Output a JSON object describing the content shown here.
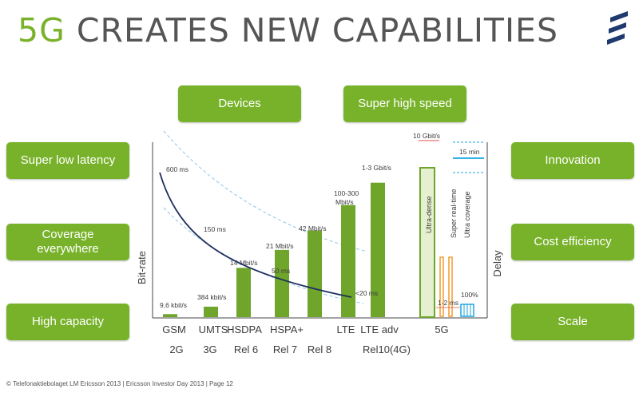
{
  "title": {
    "accent": "5G",
    "rest": " CREATES NEW CAPABILITIES"
  },
  "logo": {
    "icon": "ericsson-logo-icon",
    "color": "#1e3a6e"
  },
  "pills": {
    "devices": "Devices",
    "super_high_speed": "Super high speed",
    "super_low_latency": "Super low latency",
    "coverage": "Coverage everywhere",
    "high_capacity": "High capacity",
    "innovation": "Innovation",
    "cost_efficiency": "Cost efficiency",
    "scale": "Scale"
  },
  "colors": {
    "accent_green": "#78b22a",
    "bar_green": "#6ea52a",
    "curve_navy": "#1e2f5e",
    "dashed_blue": "#8ec3ea",
    "orange": "#f39c2f",
    "cyan": "#1aa7e0"
  },
  "chart_data": {
    "type": "bar",
    "ylabel": "Bit-rate",
    "y2label": "Delay",
    "categories": [
      "GSM",
      "UMTS",
      "HSDPA",
      "HSPA+",
      "LTE",
      "LTE adv",
      "5G"
    ],
    "generations": [
      "2G",
      "3G",
      "Rel 6",
      "Rel 7",
      "Rel 8",
      "Rel10(4G)"
    ],
    "bar_labels": [
      "9,6 kbit/s",
      "384 kbit/s",
      "14 Mbit/s",
      "21 Mbit/s",
      "42 Mbit/s",
      "100-300 Mbit/s",
      "1-3 Gbit/s",
      "10 Gbit/s"
    ],
    "bar_levels": [
      0.02,
      0.07,
      0.33,
      0.45,
      0.58,
      0.75,
      0.9,
      1.0
    ],
    "latency_labels": [
      "600 ms",
      "150 ms",
      "50 ms",
      "<20 ms"
    ],
    "five_g_labels": [
      "Ultra-dense",
      "Super real-time",
      "Ultra coverage",
      "15 min",
      "1-2 ms",
      "100%"
    ]
  },
  "footer": "© Telefonaktiebolaget LM Ericsson 2013  |  Ericsson Investor Day 2013  |  Page 12"
}
